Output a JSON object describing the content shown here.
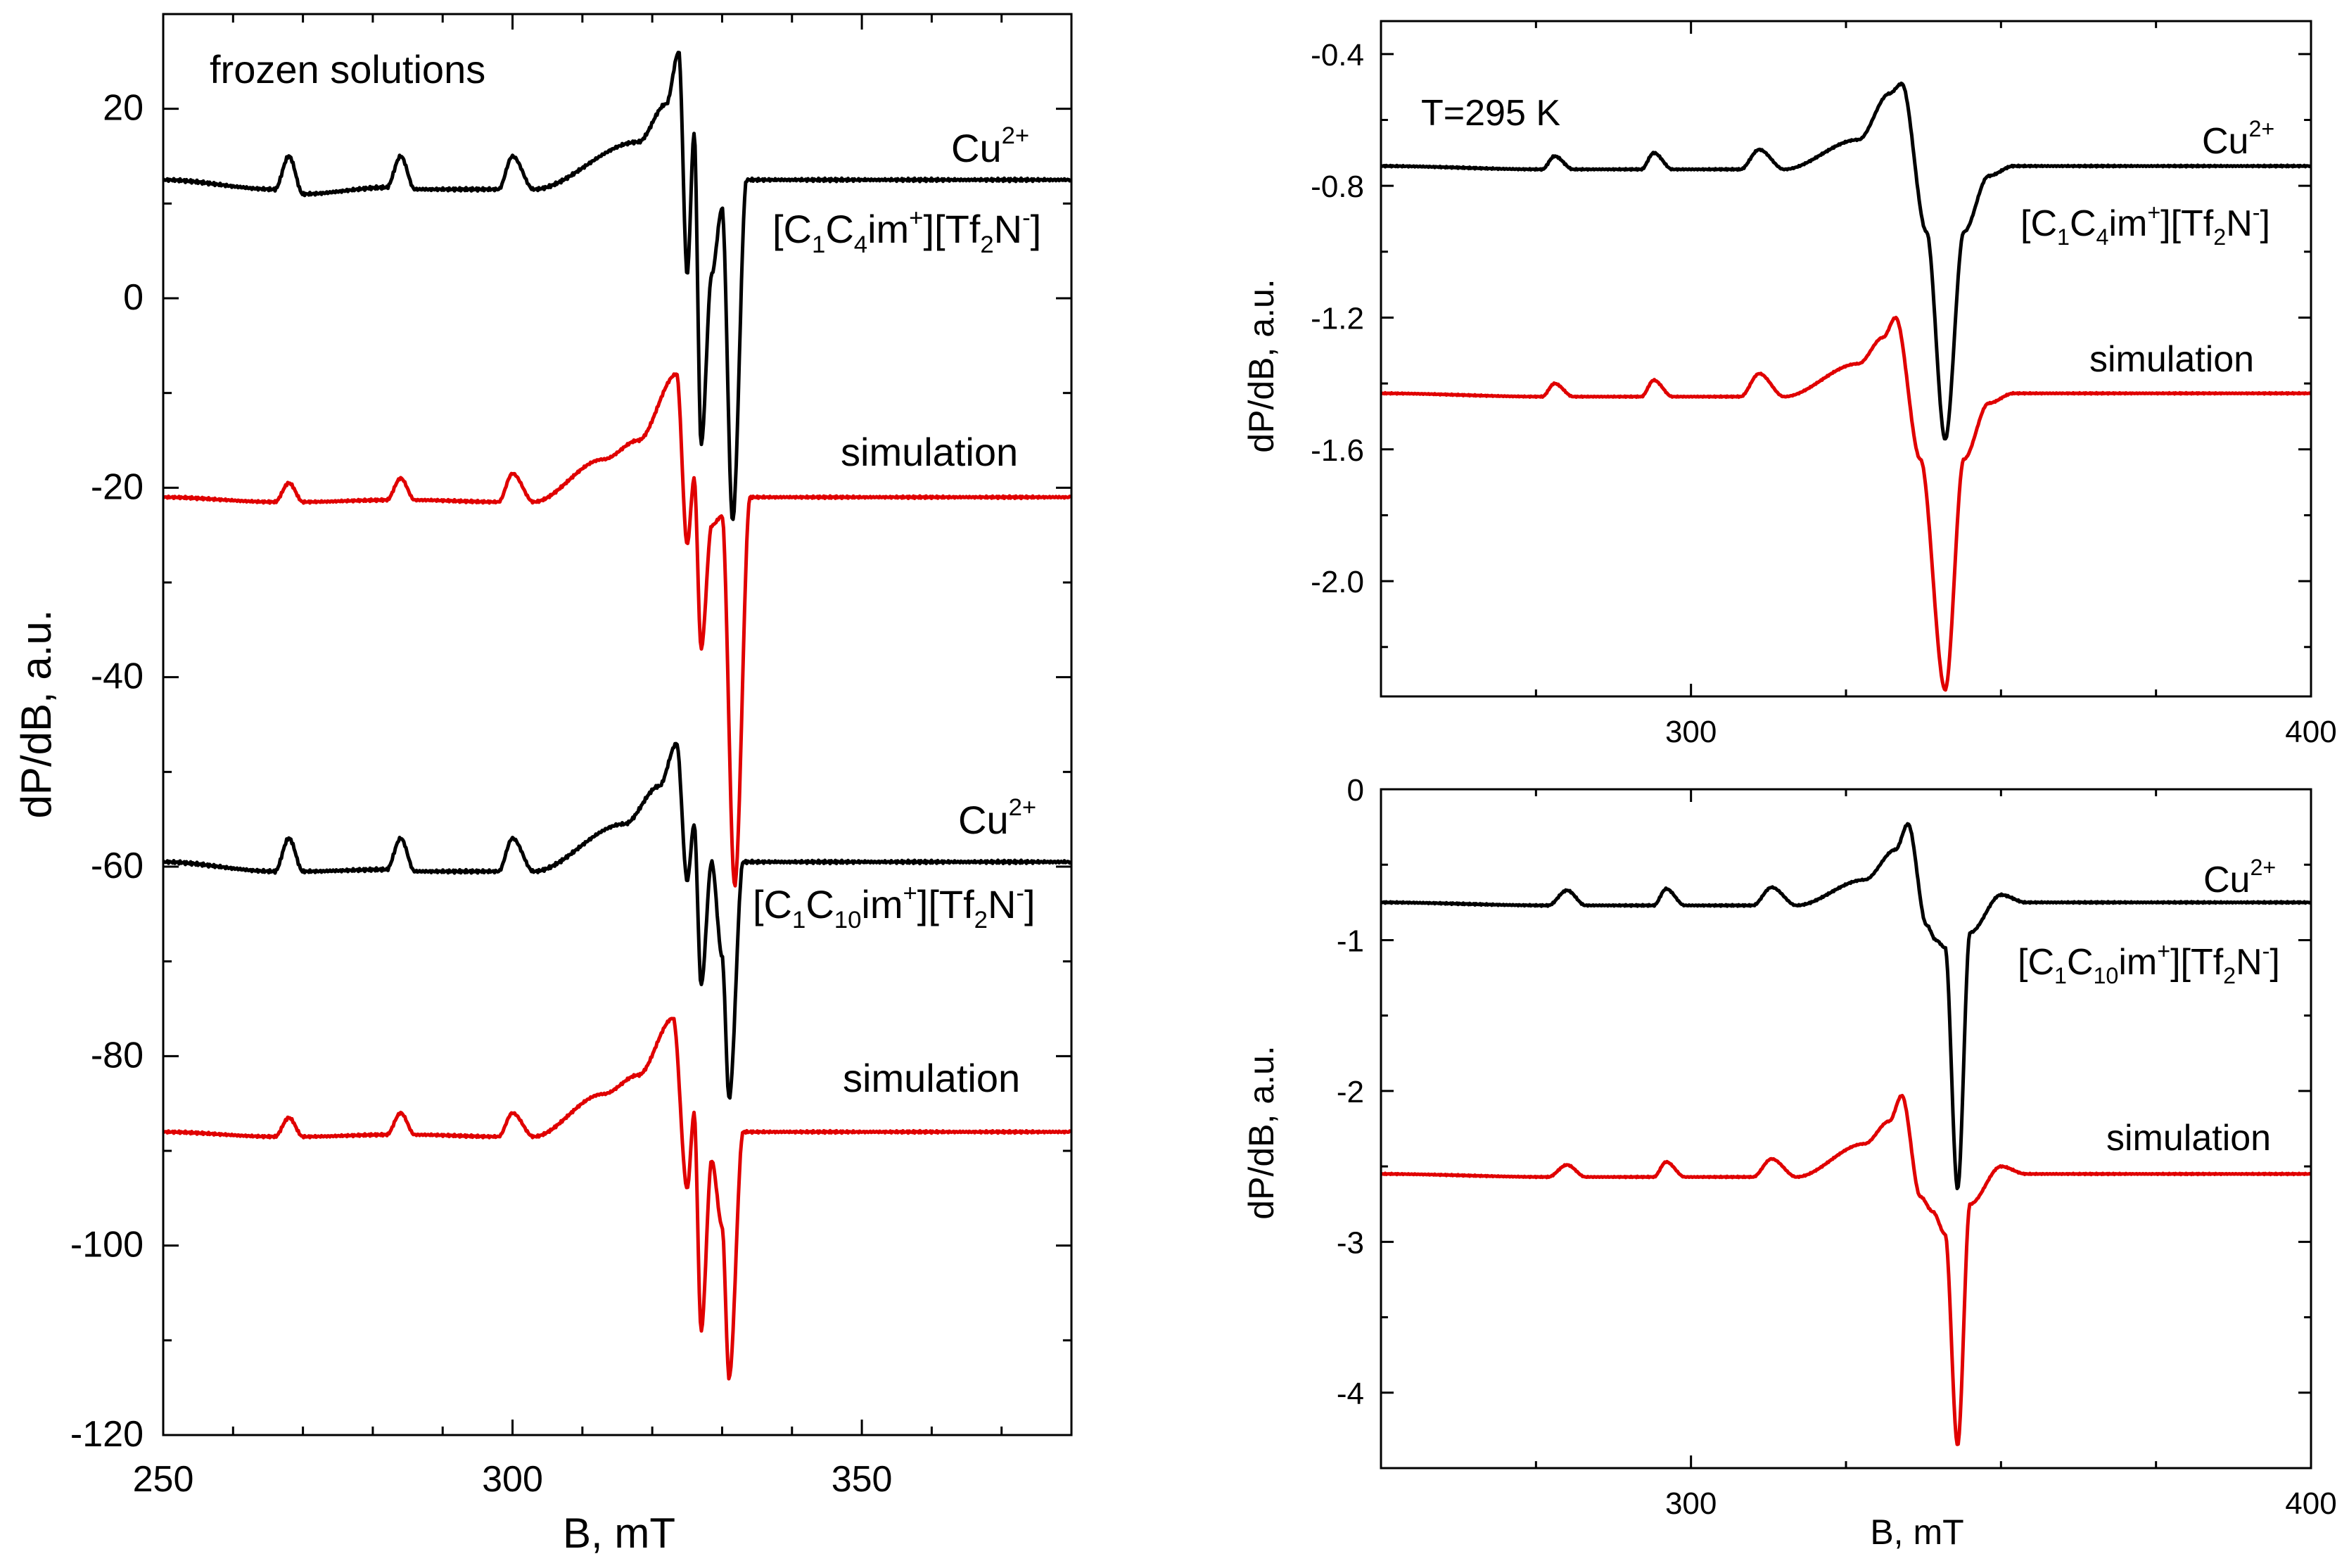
{
  "chart_data": [
    {
      "id": "left",
      "type": "line",
      "title": "",
      "xlabel": "B, mT",
      "ylabel": "dP/dB, a.u.",
      "xlim": [
        250,
        380
      ],
      "ylim": [
        -120,
        30
      ],
      "xticks": [
        250,
        300,
        350
      ],
      "yticks": [
        20,
        0,
        -20,
        -40,
        -60,
        -80,
        -100,
        -120
      ],
      "annotations": {
        "corner": "frozen solutions",
        "ion1": "Cu",
        "ion1_sup": "2+",
        "salt1": {
          "a": "[C",
          "s1": "1",
          "b": "C",
          "s2": "4",
          "c": "im",
          "s3": "+",
          "d": "][Tf",
          "s4": "2",
          "e": "N",
          "s5": "-",
          "f": "]"
        },
        "sim1": "simulation",
        "ion2": "Cu",
        "ion2_sup": "2+",
        "salt2": {
          "a": "[C",
          "s1": "1",
          "b": "C",
          "s2": "10",
          "c": "im",
          "s3": "+",
          "d": "][Tf",
          "s4": "2",
          "e": "N",
          "s5": "-",
          "f": "]"
        },
        "sim2": "simulation"
      },
      "series": [
        {
          "name": "Cu2+ [C1C4im+][Tf2N-] experiment",
          "color": "#000000",
          "baseline": 12.5,
          "shape": "exp1",
          "features": [
            [
              266,
              -1
            ],
            [
              268,
              2.5
            ],
            [
              270,
              -1.5
            ],
            [
              282,
              -0.8
            ],
            [
              284,
              2.5
            ],
            [
              286,
              -1
            ],
            [
              298,
              -1
            ],
            [
              300,
              2.5
            ],
            [
              303,
              -1
            ],
            [
              318,
              4
            ],
            [
              322,
              8
            ],
            [
              323.8,
              13.5
            ],
            [
              325,
              -10
            ],
            [
              326,
              5
            ],
            [
              327,
              -28
            ],
            [
              328.5,
              -10
            ],
            [
              330,
              -3
            ],
            [
              331.5,
              -36
            ],
            [
              333.5,
              0
            ]
          ]
        },
        {
          "name": "simulation",
          "color": "#e00000",
          "baseline": -21,
          "shape": "sim1",
          "features": [
            [
              266,
              -0.5
            ],
            [
              268,
              1.5
            ],
            [
              270,
              -0.5
            ],
            [
              282,
              -0.3
            ],
            [
              284,
              2
            ],
            [
              286,
              -0.3
            ],
            [
              298,
              -0.5
            ],
            [
              300,
              2.5
            ],
            [
              303,
              -0.5
            ],
            [
              313,
              4
            ],
            [
              318,
              6
            ],
            [
              323.5,
              13
            ],
            [
              325,
              -5
            ],
            [
              326,
              2
            ],
            [
              327,
              -16
            ],
            [
              328.5,
              -3
            ],
            [
              330,
              -2
            ],
            [
              331.8,
              -41
            ],
            [
              334,
              0
            ]
          ]
        },
        {
          "name": "Cu2+ [C1C10im+][Tf2N-] experiment",
          "color": "#000000",
          "baseline": -59.5,
          "shape": "exp2",
          "features": [
            [
              266,
              -1
            ],
            [
              268,
              2.5
            ],
            [
              270,
              -1
            ],
            [
              282,
              -0.8
            ],
            [
              284,
              2.5
            ],
            [
              286,
              -1
            ],
            [
              298,
              -1
            ],
            [
              300,
              2.5
            ],
            [
              303,
              -1
            ],
            [
              316,
              4
            ],
            [
              321,
              8
            ],
            [
              323.5,
              12.5
            ],
            [
              325,
              -2
            ],
            [
              326,
              4
            ],
            [
              327,
              -13
            ],
            [
              328.5,
              0
            ],
            [
              330,
              -10
            ],
            [
              331,
              -25
            ],
            [
              333,
              0
            ]
          ]
        },
        {
          "name": "simulation",
          "color": "#e00000",
          "baseline": -88,
          "shape": "sim2",
          "features": [
            [
              266,
              -0.5
            ],
            [
              268,
              1.5
            ],
            [
              270,
              -0.5
            ],
            [
              282,
              -0.3
            ],
            [
              284,
              2
            ],
            [
              286,
              -0.3
            ],
            [
              298,
              -0.5
            ],
            [
              300,
              2
            ],
            [
              303,
              -0.5
            ],
            [
              313,
              4
            ],
            [
              318,
              6
            ],
            [
              323,
              12
            ],
            [
              325,
              -6
            ],
            [
              326,
              2
            ],
            [
              327,
              -21
            ],
            [
              328.5,
              -3
            ],
            [
              330,
              -10
            ],
            [
              331,
              -26
            ],
            [
              333,
              0
            ]
          ]
        }
      ]
    },
    {
      "id": "right-top",
      "type": "line",
      "title": "",
      "xlabel": "",
      "ylabel": "dP/dB, a.u.",
      "xlim": [
        250,
        400
      ],
      "ylim": [
        -2.35,
        -0.3
      ],
      "xticks": [
        300,
        400
      ],
      "yticks": [
        -0.4,
        -0.8,
        -1.2,
        -1.6,
        -2.0
      ],
      "ytick_labels": [
        "-0.4",
        "-0.8",
        "-1.2",
        "-1.6",
        "-2.0"
      ],
      "annotations": {
        "corner": "T=295 K",
        "ion": "Cu",
        "ion_sup": "2+",
        "salt": {
          "a": "[C",
          "s1": "1",
          "b": "C",
          "s2": "4",
          "c": "im",
          "s3": "+",
          "d": "][Tf",
          "s4": "2",
          "e": "N",
          "s5": "-",
          "f": "]"
        },
        "sim": "simulation"
      },
      "series": [
        {
          "name": "Cu2+ [C1C4im+][Tf2N-] experiment",
          "color": "#000000",
          "baseline": -0.74,
          "shape": "rt-exp",
          "features": [
            [
              276,
              -0.01
            ],
            [
              278,
              0.03
            ],
            [
              281,
              -0.01
            ],
            [
              292,
              -0.01
            ],
            [
              294,
              0.04
            ],
            [
              297,
              -0.01
            ],
            [
              308,
              -0.01
            ],
            [
              311,
              0.05
            ],
            [
              315,
              -0.01
            ],
            [
              327,
              0.08
            ],
            [
              332,
              0.22
            ],
            [
              334,
              0.25
            ],
            [
              338,
              -0.2
            ],
            [
              341,
              -0.83
            ],
            [
              344,
              -0.2
            ],
            [
              348,
              -0.03
            ],
            [
              352,
              0
            ]
          ]
        },
        {
          "name": "simulation",
          "color": "#e00000",
          "baseline": -1.43,
          "shape": "rt-sim",
          "features": [
            [
              276,
              -0.01
            ],
            [
              278,
              0.03
            ],
            [
              281,
              -0.01
            ],
            [
              292,
              -0.01
            ],
            [
              294,
              0.04
            ],
            [
              297,
              -0.01
            ],
            [
              308,
              -0.01
            ],
            [
              311,
              0.06
            ],
            [
              315,
              -0.01
            ],
            [
              327,
              0.09
            ],
            [
              331,
              0.17
            ],
            [
              333,
              0.23
            ],
            [
              337,
              -0.2
            ],
            [
              341,
              -0.9
            ],
            [
              344,
              -0.2
            ],
            [
              348,
              -0.03
            ],
            [
              352,
              0
            ]
          ]
        }
      ]
    },
    {
      "id": "right-bottom",
      "type": "line",
      "title": "",
      "xlabel": "B, mT",
      "ylabel": "dP/dB, a.u.",
      "xlim": [
        250,
        400
      ],
      "ylim": [
        -4.5,
        0
      ],
      "xticks": [
        300,
        400
      ],
      "yticks": [
        0,
        -1,
        -2,
        -3,
        -4
      ],
      "ytick_labels": [
        "0",
        "-1",
        "-2",
        "-3",
        "-4"
      ],
      "annotations": {
        "ion": "Cu",
        "ion_sup": "2+",
        "salt": {
          "a": "[C",
          "s1": "1",
          "b": "C",
          "s2": "10",
          "c": "im",
          "s3": "+",
          "d": "][Tf",
          "s4": "2",
          "e": "N",
          "s5": "-",
          "f": "]"
        },
        "sim": "simulation"
      },
      "series": [
        {
          "name": "Cu2+ [C1C10im+][Tf2N-] experiment",
          "color": "#000000",
          "baseline": -0.75,
          "shape": "rb-exp",
          "features": [
            [
              277,
              -0.02
            ],
            [
              280,
              0.08
            ],
            [
              283,
              -0.02
            ],
            [
              294,
              -0.02
            ],
            [
              296,
              0.09
            ],
            [
              299,
              -0.02
            ],
            [
              310,
              -0.02
            ],
            [
              313,
              0.1
            ],
            [
              317,
              -0.02
            ],
            [
              328,
              0.15
            ],
            [
              333,
              0.35
            ],
            [
              335,
              0.52
            ],
            [
              338,
              -0.15
            ],
            [
              339.5,
              -0.25
            ],
            [
              341,
              -0.3
            ],
            [
              343,
              -1.9
            ],
            [
              345,
              -0.2
            ],
            [
              350,
              0.05
            ],
            [
              354,
              0
            ]
          ]
        },
        {
          "name": "simulation",
          "color": "#e00000",
          "baseline": -2.55,
          "shape": "rb-sim",
          "features": [
            [
              277,
              -0.02
            ],
            [
              280,
              0.06
            ],
            [
              283,
              -0.02
            ],
            [
              294,
              -0.02
            ],
            [
              296,
              0.08
            ],
            [
              299,
              -0.02
            ],
            [
              310,
              -0.02
            ],
            [
              313,
              0.1
            ],
            [
              317,
              -0.02
            ],
            [
              328,
              0.2
            ],
            [
              332,
              0.35
            ],
            [
              334,
              0.52
            ],
            [
              337,
              -0.15
            ],
            [
              339,
              -0.25
            ],
            [
              341,
              -0.4
            ],
            [
              343,
              -1.8
            ],
            [
              345,
              -0.2
            ],
            [
              350,
              0.05
            ],
            [
              354,
              0
            ]
          ]
        }
      ]
    }
  ]
}
